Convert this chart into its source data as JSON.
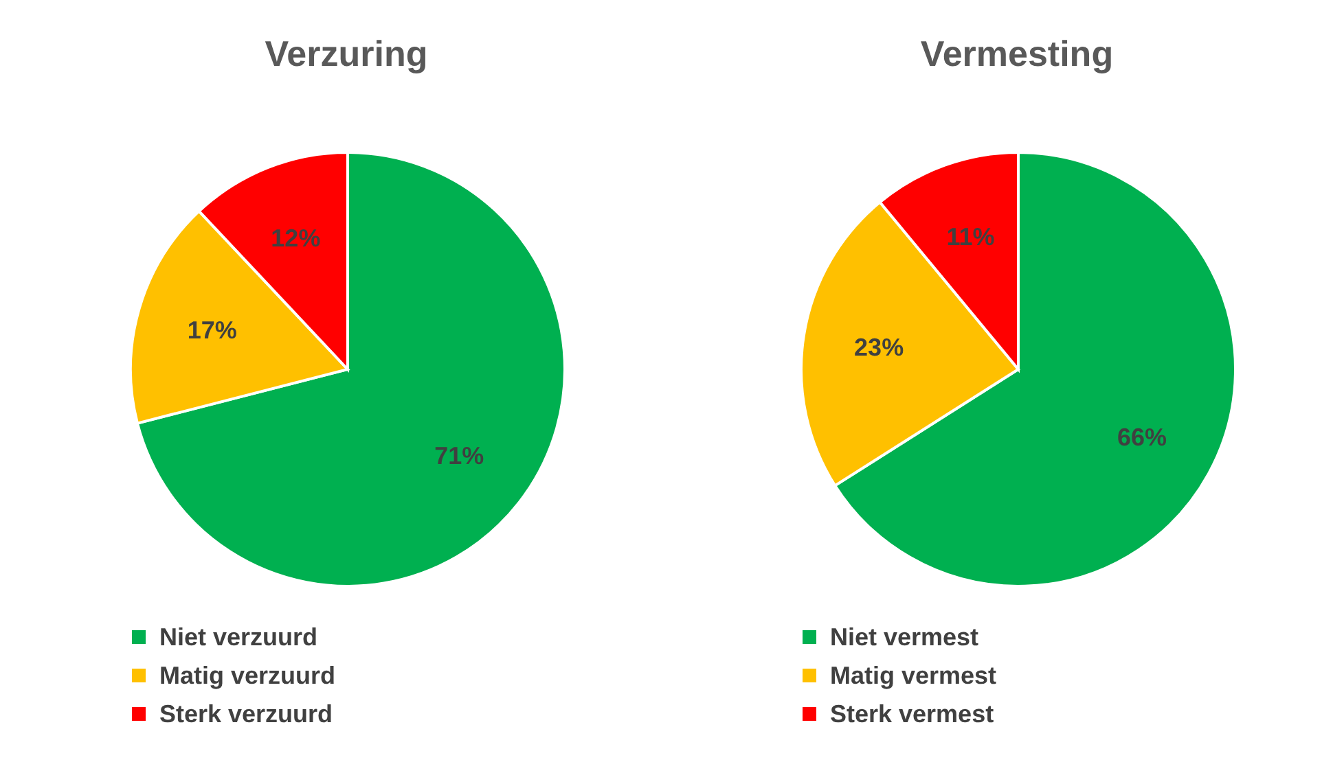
{
  "chart_data": [
    {
      "type": "pie",
      "title": "Verzuring",
      "categories": [
        "Niet verzuurd",
        "Matig verzuurd",
        "Sterk verzuurd"
      ],
      "values": [
        71,
        17,
        12
      ],
      "colors": [
        "#00b050",
        "#ffc000",
        "#ff0000"
      ],
      "value_labels": [
        "71%",
        "17%",
        "12%"
      ],
      "legend": "bottom"
    },
    {
      "type": "pie",
      "title": "Vermesting",
      "categories": [
        "Niet vermest",
        "Matig vermest",
        "Sterk vermest"
      ],
      "values": [
        66,
        23,
        11
      ],
      "colors": [
        "#00b050",
        "#ffc000",
        "#ff0000"
      ],
      "value_labels": [
        "66%",
        "23%",
        "11%"
      ],
      "legend": "bottom"
    }
  ]
}
